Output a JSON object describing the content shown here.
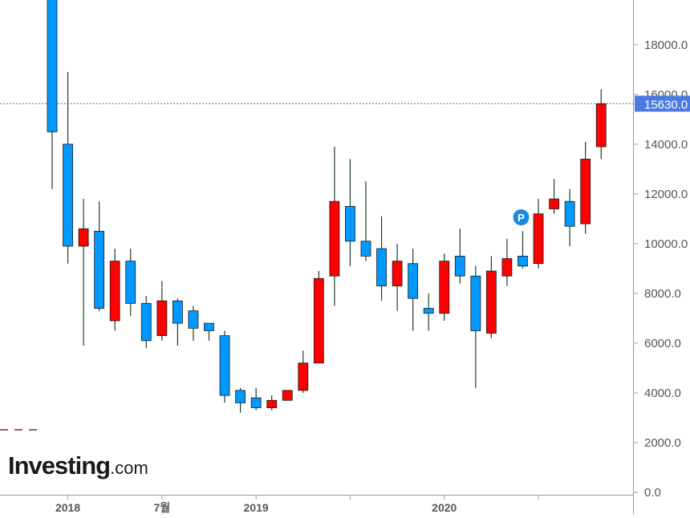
{
  "brand": {
    "name": "Investing",
    "suffix": ".com"
  },
  "pattern_marker": {
    "label": "P",
    "color": "#1e88e5"
  },
  "colors": {
    "up": "#ff0000",
    "down": "#0099ff",
    "wick": "#1f3d2a",
    "price_line": "#3366cc",
    "price_tag_bg": "#4c7be0",
    "axis": "#9a9a9a",
    "text": "#555555"
  },
  "chart_data": {
    "type": "candlestick",
    "interval": "monthly",
    "ylim": [
      0,
      19800
    ],
    "y_ticks": [
      {
        "value": 18000,
        "label": "18000.0"
      },
      {
        "value": 16000,
        "label": "16000.0"
      },
      {
        "value": 14000,
        "label": "14000.0"
      },
      {
        "value": 12000,
        "label": "12000.0"
      },
      {
        "value": 10000,
        "label": "10000.0"
      },
      {
        "value": 8000,
        "label": "8000.0"
      },
      {
        "value": 6000,
        "label": "6000.0"
      },
      {
        "value": 4000,
        "label": "4000.0"
      },
      {
        "value": 2000,
        "label": "2000.0"
      },
      {
        "value": 0,
        "label": "0.0"
      }
    ],
    "x_labels": [
      {
        "index": 1,
        "label": "2018"
      },
      {
        "index": 7,
        "label": "7월"
      },
      {
        "index": 13,
        "label": "2019"
      },
      {
        "index": 25,
        "label": "2020"
      }
    ],
    "x_ticks_unlabeled": [
      19,
      31
    ],
    "current_price": {
      "value": 15630,
      "label": "15630.0"
    },
    "pattern_marker_index": 30,
    "candles": [
      {
        "o": 19900,
        "h": 20100,
        "l": 12200,
        "c": 14500
      },
      {
        "o": 14000,
        "h": 16900,
        "l": 9200,
        "c": 9900
      },
      {
        "o": 9900,
        "h": 11800,
        "l": 5900,
        "c": 10600
      },
      {
        "o": 10500,
        "h": 11700,
        "l": 7300,
        "c": 7400
      },
      {
        "o": 6900,
        "h": 9800,
        "l": 6500,
        "c": 9300
      },
      {
        "o": 9300,
        "h": 9800,
        "l": 7100,
        "c": 7600
      },
      {
        "o": 7600,
        "h": 7900,
        "l": 5800,
        "c": 6100
      },
      {
        "o": 6300,
        "h": 8500,
        "l": 6100,
        "c": 7700
      },
      {
        "o": 7700,
        "h": 7800,
        "l": 5900,
        "c": 6800
      },
      {
        "o": 7300,
        "h": 7500,
        "l": 6100,
        "c": 6600
      },
      {
        "o": 6800,
        "h": 6800,
        "l": 6100,
        "c": 6500
      },
      {
        "o": 6300,
        "h": 6500,
        "l": 3600,
        "c": 3900
      },
      {
        "o": 4100,
        "h": 4200,
        "l": 3200,
        "c": 3600
      },
      {
        "o": 3800,
        "h": 4200,
        "l": 3300,
        "c": 3400
      },
      {
        "o": 3400,
        "h": 3900,
        "l": 3300,
        "c": 3700
      },
      {
        "o": 3700,
        "h": 4100,
        "l": 3700,
        "c": 4100
      },
      {
        "o": 4100,
        "h": 5700,
        "l": 4000,
        "c": 5200
      },
      {
        "o": 5200,
        "h": 8900,
        "l": 5200,
        "c": 8600
      },
      {
        "o": 8700,
        "h": 13900,
        "l": 7500,
        "c": 11700
      },
      {
        "o": 11500,
        "h": 13400,
        "l": 9100,
        "c": 10100
      },
      {
        "o": 10100,
        "h": 12500,
        "l": 9300,
        "c": 9500
      },
      {
        "o": 9800,
        "h": 11100,
        "l": 7700,
        "c": 8300
      },
      {
        "o": 8300,
        "h": 10000,
        "l": 7300,
        "c": 9300
      },
      {
        "o": 9200,
        "h": 9800,
        "l": 6500,
        "c": 7800
      },
      {
        "o": 7400,
        "h": 8000,
        "l": 6500,
        "c": 7200
      },
      {
        "o": 7200,
        "h": 9600,
        "l": 6900,
        "c": 9300
      },
      {
        "o": 9500,
        "h": 10600,
        "l": 8400,
        "c": 8700
      },
      {
        "o": 8700,
        "h": 9100,
        "l": 4200,
        "c": 6500
      },
      {
        "o": 6400,
        "h": 9500,
        "l": 6200,
        "c": 8900
      },
      {
        "o": 8700,
        "h": 10200,
        "l": 8300,
        "c": 9400
      },
      {
        "o": 9500,
        "h": 10500,
        "l": 9000,
        "c": 9100
      },
      {
        "o": 9200,
        "h": 11800,
        "l": 9000,
        "c": 11200
      },
      {
        "o": 11400,
        "h": 12600,
        "l": 11200,
        "c": 11800
      },
      {
        "o": 11700,
        "h": 12200,
        "l": 9900,
        "c": 10700
      },
      {
        "o": 10800,
        "h": 14100,
        "l": 10400,
        "c": 13400
      },
      {
        "o": 13900,
        "h": 16200,
        "l": 13400,
        "c": 15630
      }
    ]
  }
}
